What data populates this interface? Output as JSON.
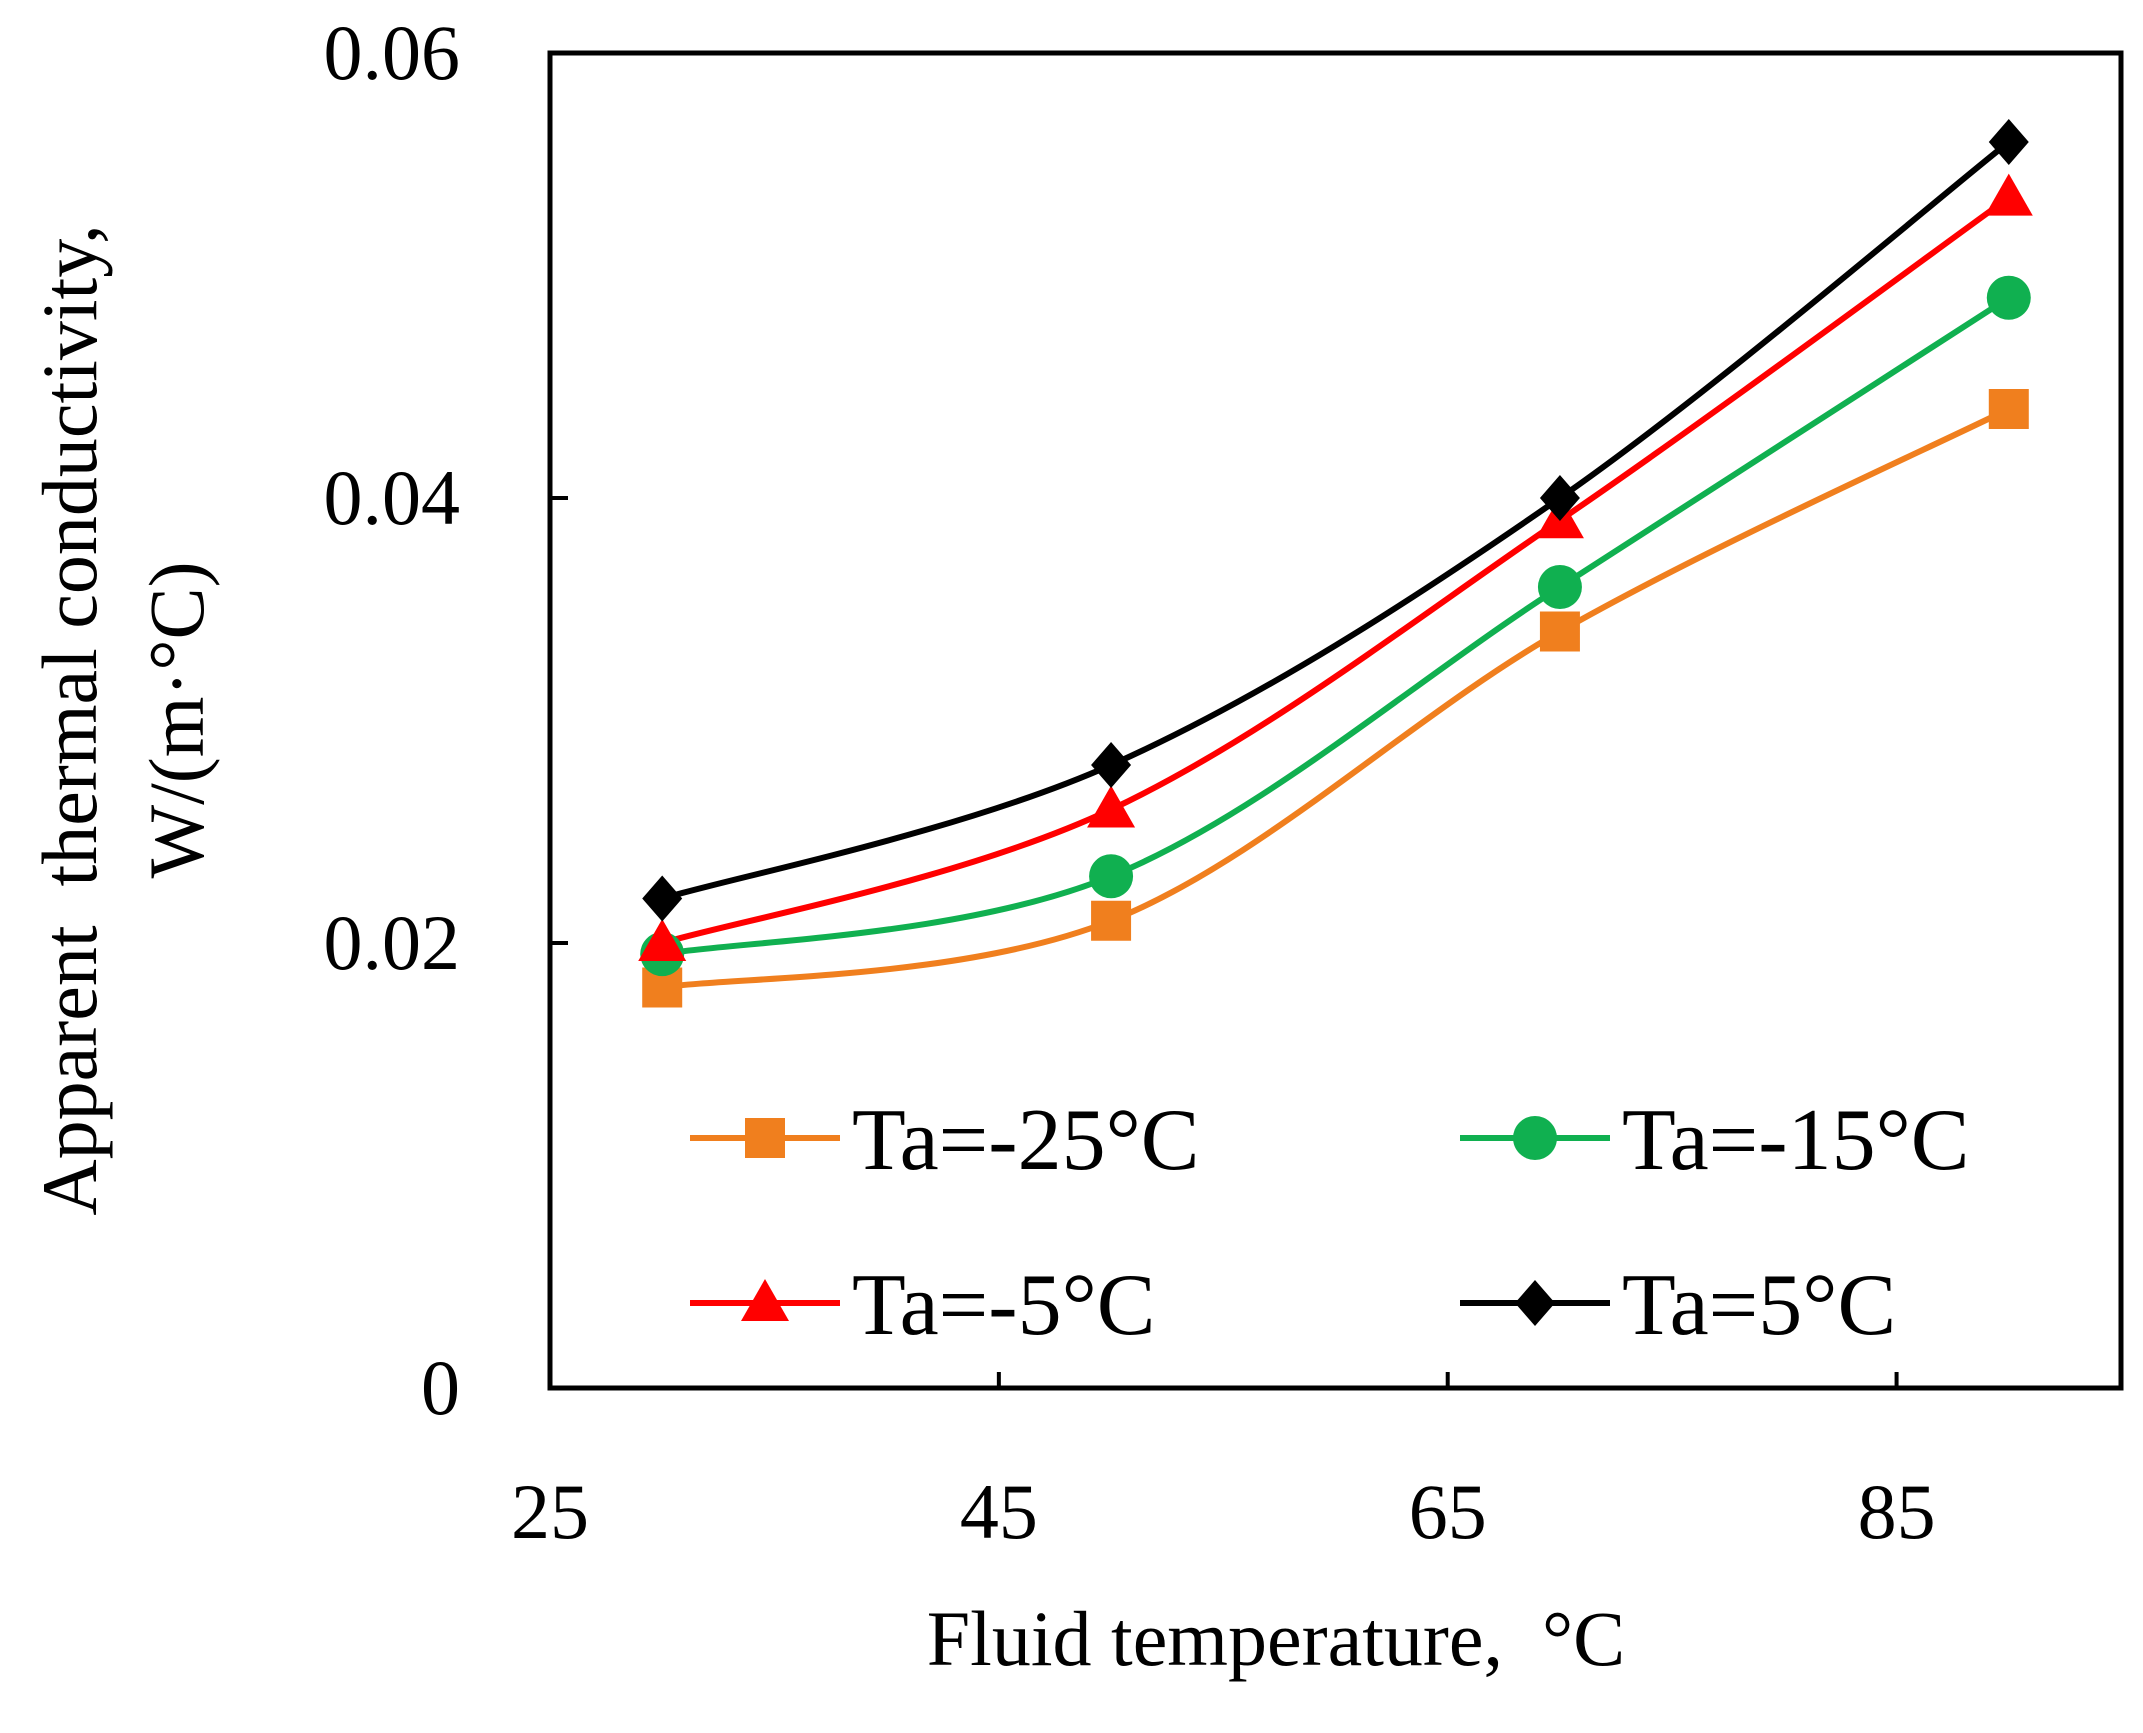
{
  "chart_data": {
    "type": "line",
    "title": "",
    "xlabel": "Fluid temperature,  °C",
    "ylabel_line1": "Apparent  thermal conductivity,",
    "ylabel_line2": "W/(m·°C)",
    "xlim": [
      25,
      95
    ],
    "ylim": [
      0,
      0.06
    ],
    "x_ticks": [
      25,
      45,
      65,
      85
    ],
    "x_tick_labels": [
      "25",
      "45",
      "65",
      "85"
    ],
    "y_ticks": [
      0,
      0.02,
      0.04,
      0.06
    ],
    "y_tick_labels": [
      "0",
      "0.02",
      "0.04",
      "0.06"
    ],
    "grid": false,
    "legend_position": "lower-inside",
    "x": [
      30,
      50,
      70,
      90
    ],
    "series": [
      {
        "name": "Ta=-25°C",
        "color": "#f07f1e",
        "marker": "square",
        "values": [
          0.018,
          0.021,
          0.034,
          0.044
        ]
      },
      {
        "name": "Ta=-15°C",
        "color": "#10b050",
        "marker": "circle",
        "values": [
          0.0195,
          0.023,
          0.036,
          0.049
        ]
      },
      {
        "name": "Ta=-5°C",
        "color": "#ff0000",
        "marker": "triangle",
        "values": [
          0.02,
          0.026,
          0.039,
          0.0535
        ]
      },
      {
        "name": "Ta=5°C",
        "color": "#000000",
        "marker": "diamond",
        "values": [
          0.022,
          0.028,
          0.04,
          0.056
        ]
      }
    ]
  }
}
